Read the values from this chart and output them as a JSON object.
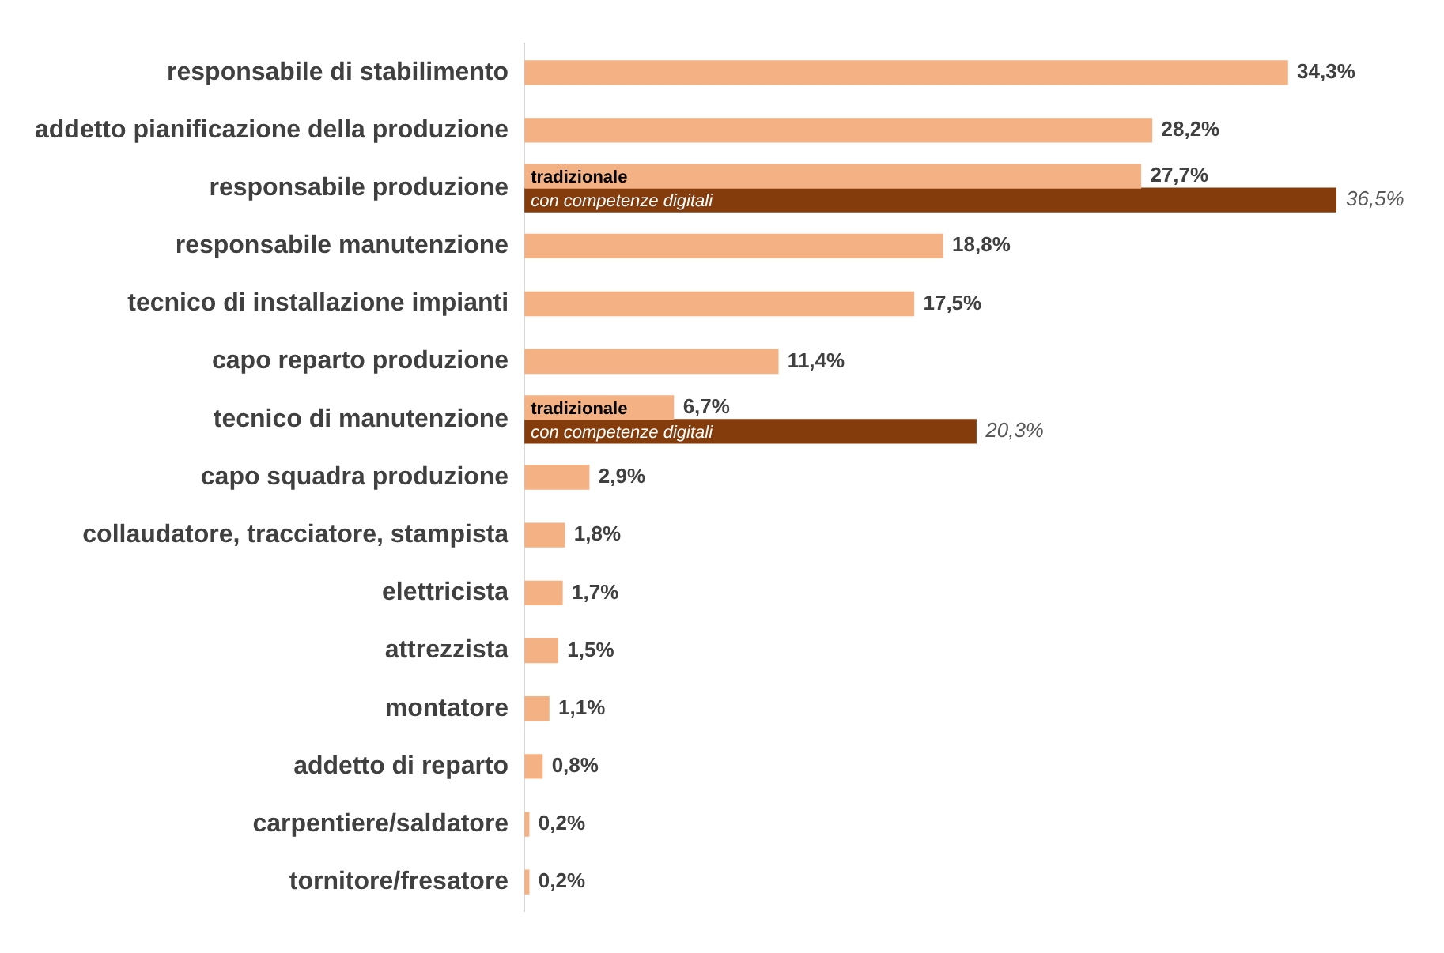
{
  "chart_data": {
    "type": "bar",
    "orientation": "horizontal",
    "categories": [
      "responsabile di stabilimento",
      "addetto pianificazione della produzione",
      "responsabile produzione",
      "responsabile manutenzione",
      "tecnico di installazione impianti",
      "capo reparto produzione",
      "tecnico di manutenzione",
      "capo squadra produzione",
      "collaudatore, tracciatore, stampista",
      "elettricista",
      "attrezzista",
      "montatore",
      "addetto di reparto",
      "carpentiere/saldatore",
      "tornitore/fresatore"
    ],
    "series": [
      {
        "name": "tradizionale",
        "color": "#f4b183",
        "values": [
          34.3,
          28.2,
          27.7,
          18.8,
          17.5,
          11.4,
          6.7,
          2.9,
          1.8,
          1.7,
          1.5,
          1.1,
          0.8,
          0.2,
          0.2
        ],
        "value_labels": [
          "34,3%",
          "28,2%",
          "27,7%",
          "18,8%",
          "17,5%",
          "11,4%",
          "6,7%",
          "2,9%",
          "1,8%",
          "1,7%",
          "1,5%",
          "1,1%",
          "0,8%",
          "0,2%",
          "0,2%"
        ]
      },
      {
        "name": "con competenze digitali",
        "color": "#843c0c",
        "values": [
          null,
          null,
          36.5,
          null,
          null,
          null,
          20.3,
          null,
          null,
          null,
          null,
          null,
          null,
          null,
          null
        ],
        "value_labels": [
          null,
          null,
          "36,5%",
          null,
          null,
          null,
          "20,3%",
          null,
          null,
          null,
          null,
          null,
          null,
          null,
          null
        ]
      }
    ],
    "xlim": [
      0,
      36.5
    ],
    "grid": false,
    "legend": false,
    "tick_labels": "y"
  }
}
